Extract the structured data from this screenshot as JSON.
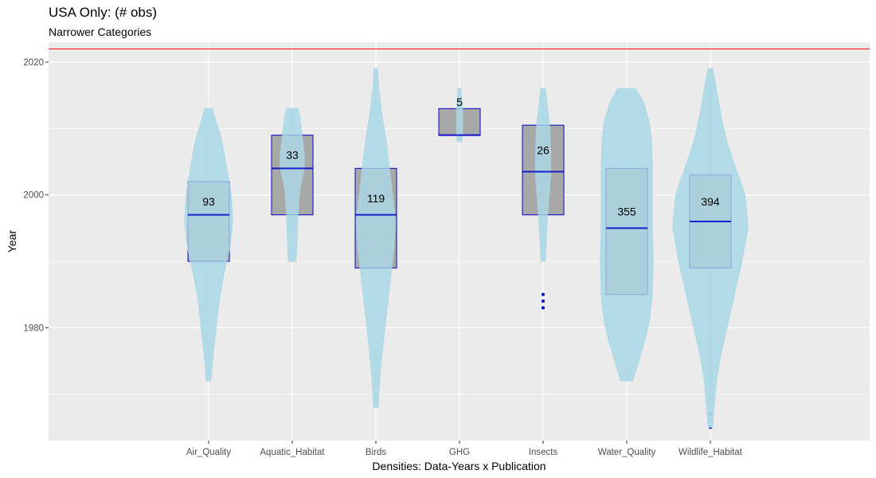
{
  "title": "USA Only: (# obs)",
  "subtitle": "Narrower Categories",
  "chart_data": {
    "type": "violin+box",
    "xlabel": "Densities: Data-Years x Publication",
    "ylabel": "Year",
    "ylim": [
      1963,
      2023
    ],
    "y_ticks": [
      1980,
      2000,
      2020
    ],
    "reference_line": {
      "y": 2022,
      "color": "#ff0000"
    },
    "colors": {
      "panel": "#ebebeb",
      "grid": "#ffffff",
      "violin": "#add8e6",
      "box_fill": "#a9a9a9",
      "box_border": "#0000cd"
    },
    "categories": [
      "Air_Quality",
      "Aquatic_Habitat",
      "Birds",
      "GHG",
      "Insects",
      "Water_Quality",
      "Wildlife_Habitat"
    ],
    "series": [
      {
        "category": "Air_Quality",
        "count_label": "93",
        "count": 93,
        "box": {
          "q1": 1990,
          "median": 1997,
          "q3": 2002
        },
        "outliers": [],
        "violin": [
          [
            1972,
            0.003
          ],
          [
            1976,
            0.006
          ],
          [
            1980,
            0.01
          ],
          [
            1984,
            0.014
          ],
          [
            1988,
            0.02
          ],
          [
            1992,
            0.028
          ],
          [
            1996,
            0.032
          ],
          [
            2000,
            0.03
          ],
          [
            2004,
            0.024
          ],
          [
            2008,
            0.018
          ],
          [
            2011,
            0.01
          ],
          [
            2013,
            0.005
          ]
        ]
      },
      {
        "category": "Aquatic_Habitat",
        "count_label": "33",
        "count": 33,
        "box": {
          "q1": 1997,
          "median": 2004,
          "q3": 2009
        },
        "outliers": [],
        "violin": [
          [
            1990,
            0.005
          ],
          [
            1992,
            0.006
          ],
          [
            1995,
            0.007
          ],
          [
            1998,
            0.008
          ],
          [
            2001,
            0.01
          ],
          [
            2004,
            0.016
          ],
          [
            2006,
            0.016
          ],
          [
            2008,
            0.014
          ],
          [
            2010,
            0.012
          ],
          [
            2012,
            0.01
          ],
          [
            2013,
            0.007
          ]
        ]
      },
      {
        "category": "Birds",
        "count_label": "119",
        "count": 119,
        "box": {
          "q1": 1989,
          "median": 1997,
          "q3": 2004
        },
        "outliers": [],
        "violin": [
          [
            1968,
            0.003
          ],
          [
            1972,
            0.005
          ],
          [
            1976,
            0.008
          ],
          [
            1980,
            0.012
          ],
          [
            1984,
            0.016
          ],
          [
            1988,
            0.02
          ],
          [
            1992,
            0.024
          ],
          [
            1996,
            0.026
          ],
          [
            2000,
            0.022
          ],
          [
            2004,
            0.018
          ],
          [
            2008,
            0.014
          ],
          [
            2012,
            0.008
          ],
          [
            2016,
            0.004
          ],
          [
            2019,
            0.002
          ]
        ]
      },
      {
        "category": "GHG",
        "count_label": "5",
        "count": 5,
        "box": {
          "q1": 2009,
          "median": 2009,
          "q3": 2013
        },
        "outliers": [],
        "violin": [
          [
            2008,
            0.003
          ],
          [
            2009,
            0.004
          ],
          [
            2011,
            0.004
          ],
          [
            2013,
            0.004
          ],
          [
            2014,
            0.003
          ],
          [
            2016,
            0.002
          ]
        ]
      },
      {
        "category": "Insects",
        "count_label": "26",
        "count": 26,
        "box": {
          "q1": 1997,
          "median": 2003.5,
          "q3": 2010.5
        },
        "outliers": [
          1983,
          1984,
          1985
        ],
        "violin": [
          [
            1990,
            0.003
          ],
          [
            1993,
            0.004
          ],
          [
            1997,
            0.006
          ],
          [
            2000,
            0.008
          ],
          [
            2003,
            0.01
          ],
          [
            2006,
            0.01
          ],
          [
            2010,
            0.009
          ],
          [
            2013,
            0.006
          ],
          [
            2016,
            0.003
          ]
        ]
      },
      {
        "category": "Water_Quality",
        "count_label": "355",
        "count": 355,
        "box": {
          "q1": 1985,
          "median": 1995,
          "q3": 2004
        },
        "outliers": [],
        "violin": [
          [
            1972,
            0.008
          ],
          [
            1975,
            0.016
          ],
          [
            1978,
            0.024
          ],
          [
            1981,
            0.03
          ],
          [
            1985,
            0.034
          ],
          [
            1990,
            0.035
          ],
          [
            1995,
            0.034
          ],
          [
            2000,
            0.034
          ],
          [
            2004,
            0.034
          ],
          [
            2008,
            0.033
          ],
          [
            2011,
            0.03
          ],
          [
            2014,
            0.022
          ],
          [
            2016,
            0.012
          ]
        ]
      },
      {
        "category": "Wildlife_Habitat",
        "count_label": "394",
        "count": 394,
        "box": {
          "q1": 1989,
          "median": 1996,
          "q3": 2003
        },
        "outliers": [
          1965,
          1966,
          1967
        ],
        "violin": [
          [
            1965,
            0.003
          ],
          [
            1968,
            0.005
          ],
          [
            1972,
            0.008
          ],
          [
            1976,
            0.014
          ],
          [
            1980,
            0.022
          ],
          [
            1985,
            0.032
          ],
          [
            1990,
            0.042
          ],
          [
            1995,
            0.05
          ],
          [
            2000,
            0.046
          ],
          [
            2004,
            0.034
          ],
          [
            2008,
            0.022
          ],
          [
            2012,
            0.014
          ],
          [
            2016,
            0.008
          ],
          [
            2019,
            0.003
          ]
        ]
      }
    ]
  }
}
